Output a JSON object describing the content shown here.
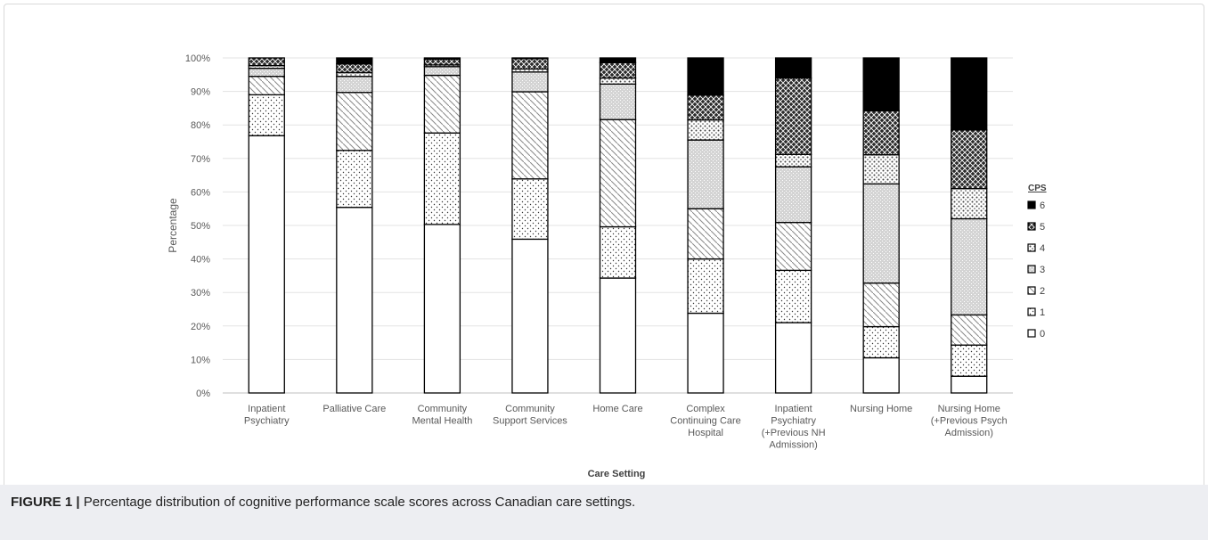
{
  "caption": {
    "label": "FIGURE 1 |",
    "text": " Percentage distribution of cognitive performance scale scores across Canadian care settings."
  },
  "chart_data": {
    "type": "bar",
    "stacked": true,
    "xlabel": "Care Setting",
    "ylabel": "Percentage",
    "ylim": [
      0,
      100
    ],
    "yticks": [
      "0%",
      "10%",
      "20%",
      "30%",
      "40%",
      "50%",
      "60%",
      "70%",
      "80%",
      "90%",
      "100%"
    ],
    "grid": true,
    "legend_position": "right",
    "legend_title": "CPS",
    "categories": [
      [
        "Inpatient",
        "Psychiatry"
      ],
      [
        "Palliative Care"
      ],
      [
        "Community",
        "Mental Health"
      ],
      [
        "Community",
        "Support Services"
      ],
      [
        "Home Care"
      ],
      [
        "Complex",
        "Continuing Care",
        "Hospital"
      ],
      [
        "Inpatient",
        "Psychiatry",
        "(+Previous NH",
        "Admission)"
      ],
      [
        "Nursing Home"
      ],
      [
        "Nursing Home",
        "(+Previous Psych",
        "Admission)"
      ]
    ],
    "series": [
      {
        "name": "0",
        "values": [
          76.8,
          55.4,
          50.3,
          45.9,
          34.3,
          23.8,
          21.0,
          10.5,
          5.0
        ]
      },
      {
        "name": "1",
        "values": [
          12.2,
          17.0,
          27.3,
          18.0,
          15.3,
          16.2,
          15.6,
          9.3,
          9.3
        ]
      },
      {
        "name": "2",
        "values": [
          5.5,
          17.3,
          17.2,
          26.0,
          32.0,
          15.0,
          14.3,
          13.0,
          9.0
        ]
      },
      {
        "name": "3",
        "values": [
          2.4,
          4.8,
          2.6,
          5.9,
          10.6,
          20.5,
          16.6,
          29.6,
          28.7
        ]
      },
      {
        "name": "4",
        "values": [
          0.8,
          1.1,
          0.5,
          0.9,
          1.8,
          6.0,
          3.7,
          8.7,
          9.0
        ]
      },
      {
        "name": "5",
        "values": [
          2.3,
          2.6,
          1.7,
          3.1,
          4.6,
          7.4,
          22.8,
          13.1,
          17.5
        ]
      },
      {
        "name": "6",
        "values": [
          0.0,
          1.8,
          0.4,
          0.2,
          1.4,
          11.1,
          6.0,
          15.8,
          21.5
        ]
      }
    ]
  }
}
